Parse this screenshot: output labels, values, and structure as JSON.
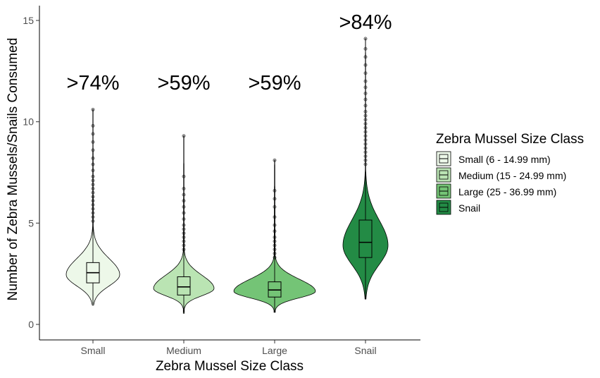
{
  "chart_data": {
    "type": "violin",
    "xlabel": "Zebra Mussel Size Class",
    "ylabel": "Number of Zebra Mussels/Snails Consumed",
    "ylim": [
      -0.8,
      15.8
    ],
    "yticks": [
      0,
      5,
      10,
      15
    ],
    "categories": [
      "Small",
      "Medium",
      "Large",
      "Snail"
    ],
    "annotations": [
      ">74%",
      ">59%",
      ">59%",
      ">84%"
    ],
    "legend": {
      "title": "Zebra Mussel Size Class",
      "entries": [
        "Small (6 - 14.99 mm)",
        "Medium (15 - 24.99 mm)",
        "Large (25 - 36.99 mm)",
        "Snail"
      ],
      "position": "right"
    },
    "colors": [
      "#edf8e9",
      "#bae4b3",
      "#74c476",
      "#238b45"
    ],
    "series": [
      {
        "name": "Small (6 - 14.99 mm)",
        "boxplot": {
          "whisker_low": 1.0,
          "q1": 2.05,
          "median": 2.55,
          "q3": 3.05,
          "whisker_high": 4.9
        },
        "violin_min": 0.95,
        "violin_max": 10.6,
        "outliers": [
          5.1,
          5.3,
          5.5,
          5.7,
          5.9,
          6.1,
          6.3,
          6.5,
          6.7,
          6.9,
          7.1,
          7.3,
          7.6,
          7.9,
          8.2,
          8.6,
          9.0,
          9.4,
          9.8,
          10.6
        ]
      },
      {
        "name": "Medium (15 - 24.99 mm)",
        "boxplot": {
          "whisker_low": 0.6,
          "q1": 1.45,
          "median": 1.85,
          "q3": 2.35,
          "whisker_high": 9.3
        },
        "violin_min": 0.55,
        "violin_max": 9.3,
        "outliers": [
          3.7,
          3.9,
          4.1,
          4.3,
          4.5,
          4.7,
          4.9,
          5.2,
          5.5,
          5.8,
          6.1,
          6.4,
          6.7,
          7.3,
          9.3
        ]
      },
      {
        "name": "Large (25 - 36.99 mm)",
        "boxplot": {
          "whisker_low": 0.6,
          "q1": 1.35,
          "median": 1.7,
          "q3": 2.1,
          "whisker_high": 8.1
        },
        "violin_min": 0.6,
        "violin_max": 8.1,
        "outliers": [
          3.3,
          3.5,
          3.7,
          3.9,
          4.1,
          4.3,
          4.6,
          4.9,
          5.3,
          5.8,
          6.2,
          6.6,
          8.1
        ]
      },
      {
        "name": "Snail",
        "boxplot": {
          "whisker_low": 1.25,
          "q1": 3.3,
          "median": 4.05,
          "q3": 5.15,
          "whisker_high": 7.8
        },
        "violin_min": 1.25,
        "violin_max": 14.1,
        "outliers": [
          7.9,
          8.1,
          8.3,
          8.5,
          8.7,
          8.9,
          9.1,
          9.3,
          9.5,
          9.7,
          9.9,
          10.1,
          10.3,
          10.5,
          10.8,
          11.1,
          11.4,
          11.7,
          12.0,
          12.4,
          12.8,
          13.2,
          13.6,
          14.1
        ]
      }
    ]
  }
}
